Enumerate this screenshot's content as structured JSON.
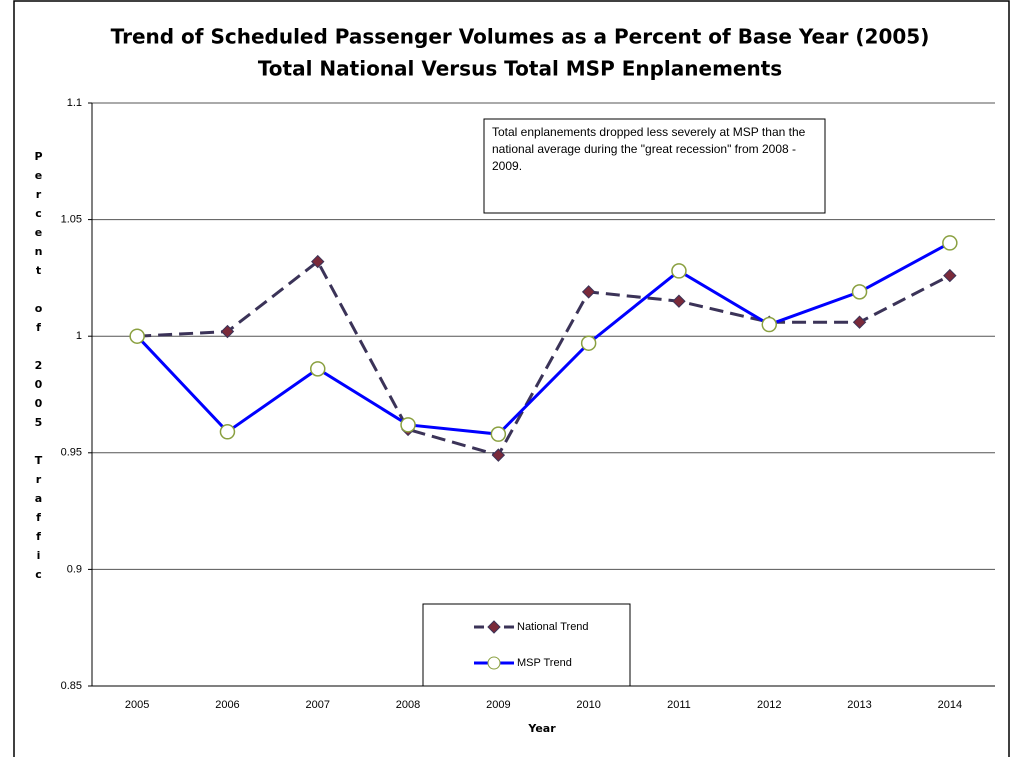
{
  "chart_data": {
    "type": "line",
    "title": "Trend of Scheduled Passenger Volumes as a Percent of Base Year (2005)",
    "subtitle": "Total National Versus Total MSP Enplanements",
    "x_label": "Year",
    "y_label": "Percent of 2005 Traffic",
    "annotation": "Total enplanements dropped less severely at MSP than the national average during the \"great recession\" from 2008 - 2009.",
    "categories": [
      "2005",
      "2006",
      "2007",
      "2008",
      "2009",
      "2010",
      "2011",
      "2012",
      "2013",
      "2014"
    ],
    "series": [
      {
        "name": "National Trend",
        "color": "#3b3358",
        "marker_color": "#7a2a3a",
        "dash": true,
        "values": [
          1.0,
          1.002,
          1.032,
          0.96,
          0.949,
          1.019,
          1.015,
          1.006,
          1.006,
          1.026
        ]
      },
      {
        "name": "MSP Trend",
        "color": "#0000ff",
        "marker_color": "#ffffff",
        "dash": false,
        "values": [
          1.0,
          0.959,
          0.986,
          0.962,
          0.958,
          0.997,
          1.028,
          1.005,
          1.019,
          1.04
        ]
      }
    ],
    "ylim": [
      0.85,
      1.1
    ],
    "yticks": [
      0.85,
      0.9,
      0.95,
      1,
      1.05,
      1.1
    ],
    "grid": true
  }
}
